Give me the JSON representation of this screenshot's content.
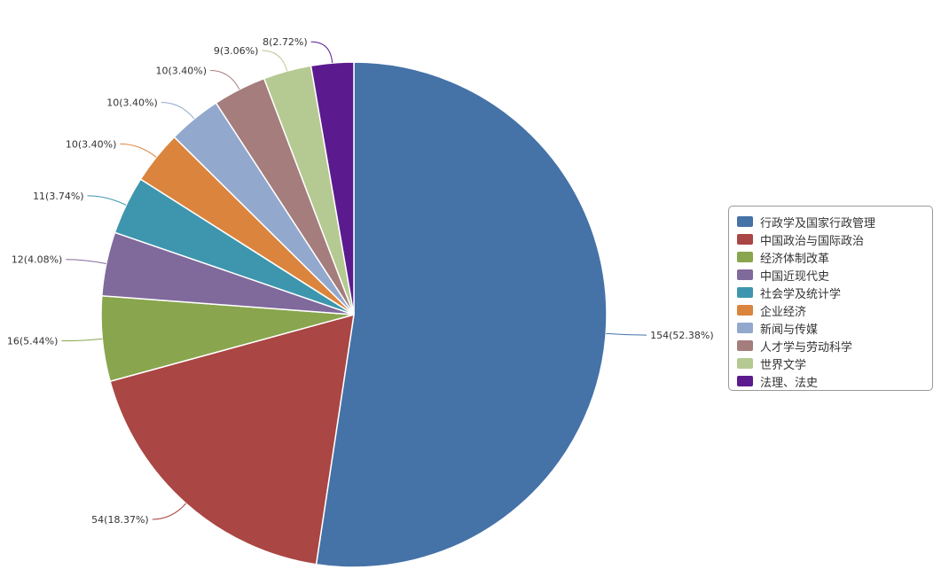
{
  "chart_data": {
    "type": "pie",
    "categories": [
      "行政学及国家行政管理",
      "中国政治与国际政治",
      "经济体制改革",
      "中国近现代史",
      "社会学及统计学",
      "企业经济",
      "新闻与传媒",
      "人才学与劳动科学",
      "世界文学",
      "法理、法史"
    ],
    "values": [
      154,
      54,
      16,
      12,
      11,
      10,
      10,
      10,
      9,
      8
    ],
    "labels": [
      "154(52.38%)",
      "54(18.37%)",
      "16(5.44%)",
      "12(4.08%)",
      "11(3.74%)",
      "10(3.40%)",
      "10(3.40%)",
      "10(3.40%)",
      "9(3.06%)",
      "8(2.72%)"
    ],
    "colors": [
      "#4572a7",
      "#aa4643",
      "#89a54e",
      "#80699b",
      "#3d96ae",
      "#db843d",
      "#92a8cd",
      "#a47d7c",
      "#b5ca92",
      "#5c1a8f"
    ],
    "start": "top, clockwise",
    "legend_position": "right"
  }
}
